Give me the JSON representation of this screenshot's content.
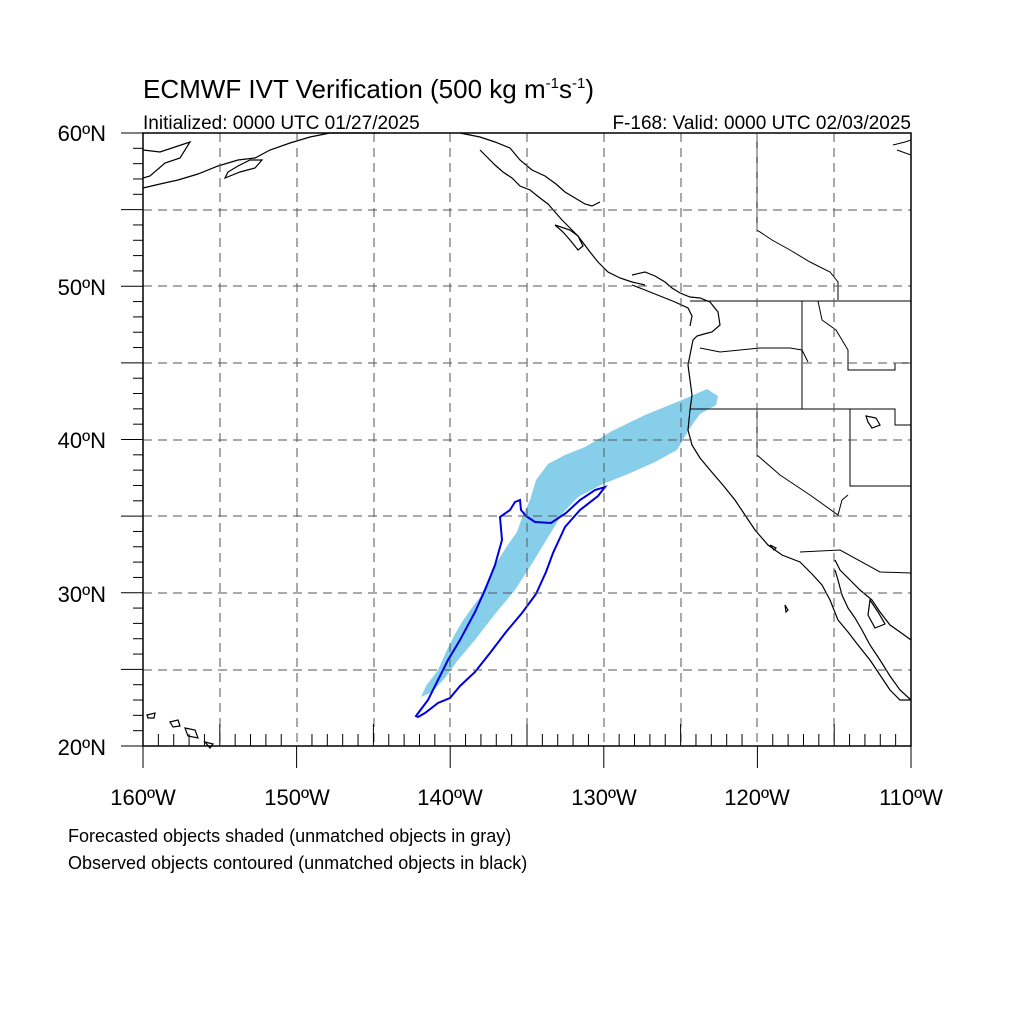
{
  "title": {
    "main": "ECMWF IVT Verification (500 kg m",
    "sup1": "-1",
    "mid": "s",
    "sup2": "-1",
    "end": ")"
  },
  "subtitle_left": "Initialized: 0000 UTC 01/27/2025",
  "subtitle_right": "F-168: Valid: 0000 UTC 02/03/2025",
  "lat_labels": [
    "60ºN",
    "50ºN",
    "40ºN",
    "30ºN",
    "20ºN"
  ],
  "lon_labels": [
    "160ºW",
    "150ºW",
    "140ºW",
    "130ºW",
    "120ºW",
    "110ºW"
  ],
  "captions": [
    "Forecasted objects shaded (unmatched objects in gray)",
    "Observed objects contoured (unmatched objects in black)"
  ],
  "colors": {
    "forecast_object": "#87CEEB",
    "observed_object": "#0000DD",
    "coastline": "#000000",
    "grid": "#555555"
  }
}
